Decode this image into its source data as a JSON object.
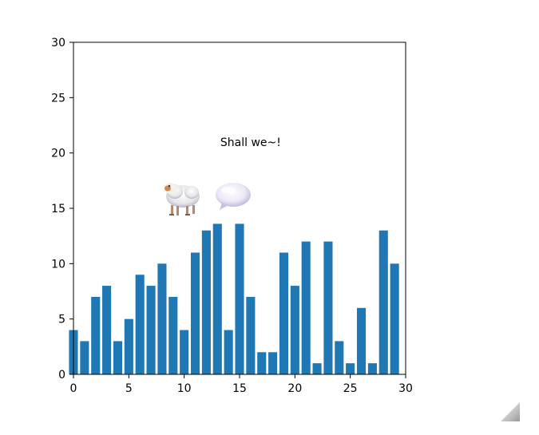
{
  "chart_data": {
    "type": "bar",
    "x": [
      0,
      1,
      2,
      3,
      4,
      5,
      6,
      7,
      8,
      9,
      10,
      11,
      12,
      13,
      14,
      15,
      16,
      17,
      18,
      19,
      20,
      21,
      22,
      23,
      24,
      25,
      26,
      27,
      28,
      29
    ],
    "values": [
      4,
      3,
      7,
      8,
      3,
      5,
      9,
      8,
      10,
      7,
      4,
      11,
      13,
      13.6,
      4,
      13.6,
      7,
      2,
      2,
      11,
      8,
      12,
      1,
      12,
      3,
      1,
      6,
      1,
      13,
      10
    ],
    "xlim": [
      0,
      30
    ],
    "ylim": [
      0,
      30
    ],
    "xticks": [
      "0",
      "5",
      "10",
      "15",
      "20",
      "25",
      "30"
    ],
    "yticks": [
      "0",
      "5",
      "10",
      "15",
      "20",
      "25",
      "30"
    ],
    "annotation": {
      "text": "Shall we~!",
      "x": 16,
      "y": 21
    },
    "bar_color": "#1f77b4",
    "grid": false,
    "sprites": [
      {
        "name": "sheep-sprite",
        "x": 10,
        "y": 16.2
      },
      {
        "name": "speech-bubble-sprite",
        "x": 14.5,
        "y": 16.2
      }
    ]
  }
}
